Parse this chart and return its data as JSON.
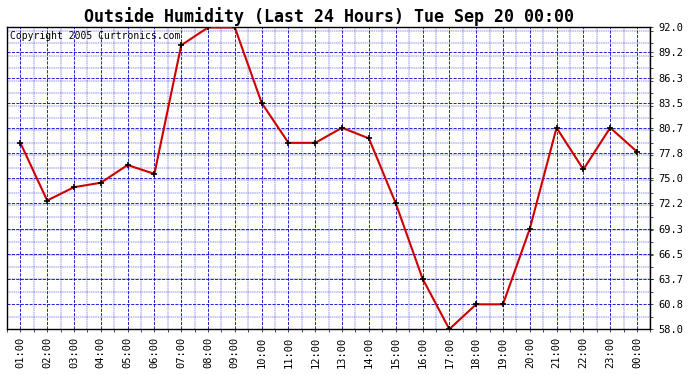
{
  "title": "Outside Humidity (Last 24 Hours) Tue Sep 20 00:00",
  "copyright": "Copyright 2005 Curtronics.com",
  "x_labels": [
    "01:00",
    "02:00",
    "03:00",
    "04:00",
    "05:00",
    "06:00",
    "07:00",
    "08:00",
    "09:00",
    "10:00",
    "11:00",
    "12:00",
    "13:00",
    "14:00",
    "15:00",
    "16:00",
    "17:00",
    "18:00",
    "19:00",
    "20:00",
    "21:00",
    "22:00",
    "23:00",
    "00:00"
  ],
  "y_values": [
    79.0,
    72.5,
    74.0,
    74.5,
    76.5,
    75.5,
    90.0,
    92.0,
    92.0,
    83.5,
    79.0,
    79.0,
    80.7,
    79.5,
    72.2,
    63.7,
    58.0,
    60.8,
    60.8,
    69.3,
    80.7,
    76.0,
    80.7,
    78.0
  ],
  "line_color": "#cc0000",
  "marker_color": "#000000",
  "fig_bg_color": "#ffffff",
  "plot_bg_color": "#ffffff",
  "grid_color": "#0000cc",
  "border_color": "#000000",
  "title_color": "#000000",
  "copyright_color": "#000000",
  "ytick_labels": [
    "58.0",
    "60.8",
    "63.7",
    "66.5",
    "69.3",
    "72.2",
    "75.0",
    "77.8",
    "80.7",
    "83.5",
    "86.3",
    "89.2",
    "92.0"
  ],
  "ytick_values": [
    58.0,
    60.8,
    63.7,
    66.5,
    69.3,
    72.2,
    75.0,
    77.8,
    80.7,
    83.5,
    86.3,
    89.2,
    92.0
  ],
  "ylim": [
    58.0,
    92.0
  ],
  "title_fontsize": 12,
  "copyright_fontsize": 7,
  "tick_fontsize": 7.5
}
